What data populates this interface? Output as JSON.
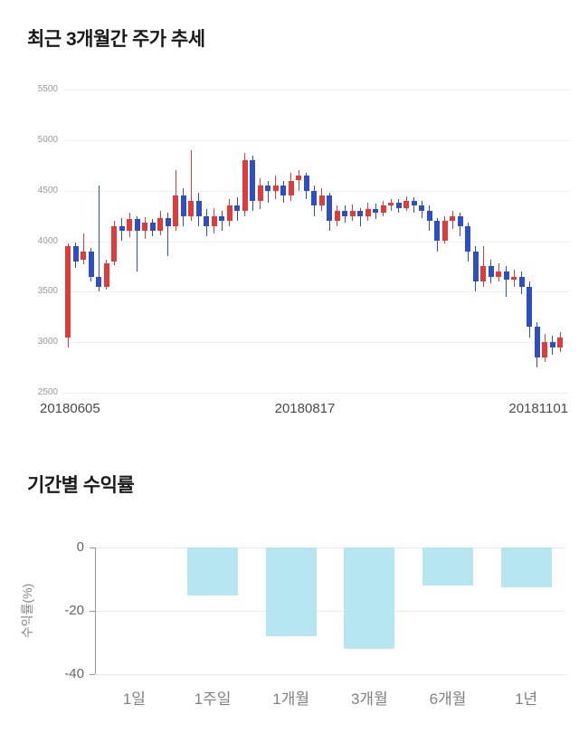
{
  "price_section": {
    "title": "최근 3개월간 주가 추세"
  },
  "returns_section": {
    "title": "기간별 수익률"
  },
  "chart_data": [
    {
      "type": "candlestick",
      "title": "최근 3개월간 주가 추세",
      "ylim": [
        2500,
        5500
      ],
      "y_ticks": [
        5500,
        5000,
        4500,
        4000,
        3500,
        3000,
        2500
      ],
      "x_labels": [
        "20180605",
        "20180817",
        "20181101"
      ],
      "grid": true,
      "colors": {
        "up": "#e03b3b",
        "down": "#2d4fc0",
        "grid": "#ededed",
        "tick_text": "#999999",
        "x_text": "#4a4a4a"
      },
      "candles_format": [
        "open",
        "close",
        "low",
        "high"
      ],
      "candles": [
        [
          3050,
          3950,
          2950,
          3980
        ],
        [
          3950,
          3800,
          3740,
          3990
        ],
        [
          3820,
          3900,
          3770,
          4080
        ],
        [
          3900,
          3650,
          3600,
          3930
        ],
        [
          3650,
          3550,
          3500,
          4550
        ],
        [
          3550,
          3780,
          3520,
          3820
        ],
        [
          3800,
          4150,
          3760,
          4200
        ],
        [
          4150,
          4100,
          4000,
          4230
        ],
        [
          4100,
          4220,
          4040,
          4280
        ],
        [
          4220,
          4100,
          3700,
          4250
        ],
        [
          4100,
          4180,
          4020,
          4240
        ],
        [
          4180,
          4100,
          4050,
          4220
        ],
        [
          4100,
          4230,
          4060,
          4300
        ],
        [
          4230,
          4150,
          3850,
          4280
        ],
        [
          4150,
          4450,
          4100,
          4700
        ],
        [
          4450,
          4250,
          4150,
          4520
        ],
        [
          4250,
          4400,
          4200,
          4900
        ],
        [
          4400,
          4250,
          4150,
          4480
        ],
        [
          4250,
          4150,
          4050,
          4320
        ],
        [
          4150,
          4250,
          4080,
          4330
        ],
        [
          4250,
          4200,
          4100,
          4300
        ],
        [
          4200,
          4350,
          4150,
          4420
        ],
        [
          4350,
          4300,
          4200,
          4430
        ],
        [
          4300,
          4800,
          4250,
          4870
        ],
        [
          4800,
          4400,
          4300,
          4850
        ],
        [
          4400,
          4550,
          4320,
          4620
        ],
        [
          4550,
          4500,
          4380,
          4600
        ],
        [
          4500,
          4550,
          4420,
          4650
        ],
        [
          4550,
          4450,
          4380,
          4600
        ],
        [
          4450,
          4600,
          4400,
          4680
        ],
        [
          4600,
          4650,
          4500,
          4700
        ],
        [
          4650,
          4500,
          4420,
          4680
        ],
        [
          4500,
          4350,
          4250,
          4550
        ],
        [
          4350,
          4450,
          4300,
          4520
        ],
        [
          4450,
          4200,
          4100,
          4480
        ],
        [
          4200,
          4300,
          4150,
          4350
        ],
        [
          4300,
          4250,
          4180,
          4350
        ],
        [
          4250,
          4300,
          4200,
          4360
        ],
        [
          4300,
          4250,
          4150,
          4330
        ],
        [
          4250,
          4320,
          4200,
          4380
        ],
        [
          4320,
          4280,
          4220,
          4370
        ],
        [
          4280,
          4350,
          4250,
          4400
        ],
        [
          4350,
          4380,
          4300,
          4420
        ],
        [
          4380,
          4330,
          4280,
          4420
        ],
        [
          4330,
          4400,
          4300,
          4440
        ],
        [
          4400,
          4350,
          4280,
          4430
        ],
        [
          4350,
          4300,
          4230,
          4400
        ],
        [
          4300,
          4200,
          4100,
          4350
        ],
        [
          4200,
          4000,
          3900,
          4230
        ],
        [
          4000,
          4200,
          3980,
          4250
        ],
        [
          4200,
          4250,
          4120,
          4300
        ],
        [
          4250,
          4150,
          4050,
          4280
        ],
        [
          4150,
          3900,
          3800,
          4180
        ],
        [
          3900,
          3600,
          3500,
          3950
        ],
        [
          3600,
          3750,
          3550,
          3950
        ],
        [
          3750,
          3650,
          3580,
          3820
        ],
        [
          3650,
          3700,
          3600,
          3780
        ],
        [
          3700,
          3620,
          3450,
          3750
        ],
        [
          3620,
          3650,
          3550,
          3720
        ],
        [
          3650,
          3550,
          3480,
          3700
        ],
        [
          3550,
          3150,
          3050,
          3600
        ],
        [
          3150,
          2850,
          2750,
          3200
        ],
        [
          2850,
          3000,
          2800,
          3080
        ],
        [
          3000,
          2950,
          2880,
          3060
        ],
        [
          2950,
          3050,
          2900,
          3100
        ]
      ]
    },
    {
      "type": "bar",
      "title": "기간별 수익률",
      "ylabel": "수익률(%)",
      "categories": [
        "1일",
        "1주일",
        "1개월",
        "3개월",
        "6개월",
        "1년"
      ],
      "values": [
        0,
        -15,
        -28,
        -32,
        -12,
        -12.5
      ],
      "y_ticks": [
        0,
        -20,
        -40
      ],
      "ylim": [
        -40,
        0
      ],
      "grid": true,
      "legend": "none",
      "colors": {
        "bar": "#b5e6f2",
        "axis": "#999999",
        "tick_text": "#666666",
        "category_text": "#808080",
        "grid": "#e9e9e9",
        "ylabel_text": "#888888"
      }
    }
  ]
}
